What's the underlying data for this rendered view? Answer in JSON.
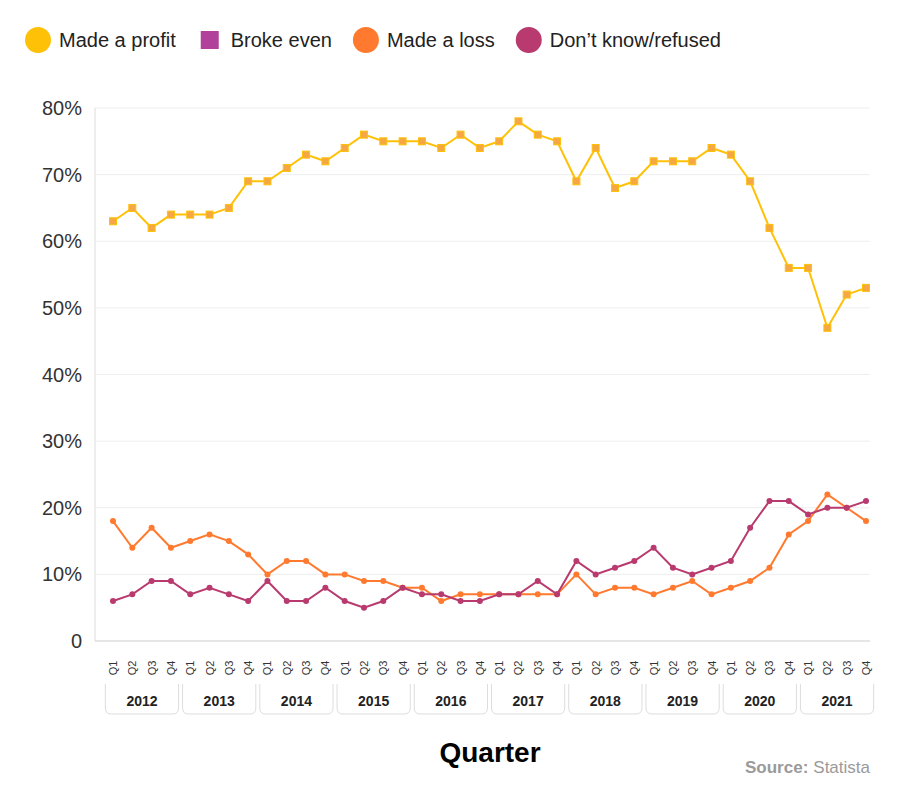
{
  "chart_data": {
    "type": "line",
    "x_label": "Quarter",
    "source_label": "Source:",
    "source": "Statista",
    "category_groups": [
      {
        "label": "2012",
        "quarters": [
          "Q1",
          "Q2",
          "Q3",
          "Q4"
        ]
      },
      {
        "label": "2013",
        "quarters": [
          "Q1",
          "Q2",
          "Q3",
          "Q4"
        ]
      },
      {
        "label": "2014",
        "quarters": [
          "Q1",
          "Q2",
          "Q3",
          "Q4"
        ]
      },
      {
        "label": "2015",
        "quarters": [
          "Q1",
          "Q2",
          "Q3",
          "Q4"
        ]
      },
      {
        "label": "2016",
        "quarters": [
          "Q1",
          "Q2",
          "Q3",
          "Q4"
        ]
      },
      {
        "label": "2017",
        "quarters": [
          "Q1",
          "Q2",
          "Q3",
          "Q4"
        ]
      },
      {
        "label": "2018",
        "quarters": [
          "Q1",
          "Q2",
          "Q3",
          "Q4"
        ]
      },
      {
        "label": "2019",
        "quarters": [
          "Q1",
          "Q2",
          "Q3",
          "Q4"
        ]
      },
      {
        "label": "2020",
        "quarters": [
          "Q1",
          "Q2",
          "Q3",
          "Q4"
        ]
      },
      {
        "label": "2021",
        "quarters": [
          "Q1",
          "Q2",
          "Q3",
          "Q4"
        ]
      }
    ],
    "series": [
      {
        "name": "Made a profit",
        "type": "line",
        "color": "#FFC107",
        "marker": "square",
        "values": [
          63,
          65,
          62,
          64,
          64,
          64,
          65,
          69,
          69,
          71,
          73,
          72,
          74,
          76,
          75,
          75,
          75,
          74,
          76,
          74,
          75,
          78,
          76,
          75,
          69,
          74,
          68,
          69,
          72,
          72,
          72,
          74,
          73,
          69,
          62,
          56,
          56,
          47,
          52,
          53
        ]
      },
      {
        "name": "Broke even",
        "type": "scatter",
        "color": "#B0409A",
        "marker": "square",
        "values": [
          null,
          null,
          null,
          null,
          null,
          null,
          null,
          null,
          null,
          null,
          null,
          null,
          null,
          null,
          null,
          null,
          null,
          null,
          null,
          null,
          null,
          null,
          null,
          null,
          null,
          null,
          null,
          null,
          null,
          null,
          null,
          null,
          null,
          null,
          null,
          null,
          null,
          null,
          null,
          null
        ]
      },
      {
        "name": "Made a loss",
        "type": "line",
        "color": "#FF7A2F",
        "marker": "circle",
        "values": [
          18,
          14,
          17,
          14,
          15,
          16,
          15,
          13,
          10,
          12,
          12,
          10,
          10,
          9,
          9,
          8,
          8,
          6,
          7,
          7,
          7,
          7,
          7,
          7,
          10,
          7,
          8,
          8,
          7,
          8,
          9,
          7,
          8,
          9,
          11,
          16,
          18,
          22,
          20,
          18
        ]
      },
      {
        "name": "Don’t know/refused",
        "type": "line",
        "color": "#B83A6E",
        "marker": "circle",
        "values": [
          6,
          7,
          9,
          9,
          7,
          8,
          7,
          6,
          9,
          6,
          6,
          8,
          6,
          5,
          6,
          8,
          7,
          7,
          6,
          6,
          7,
          7,
          9,
          7,
          12,
          10,
          11,
          12,
          14,
          11,
          10,
          11,
          12,
          17,
          21,
          21,
          19,
          20,
          20,
          21
        ]
      }
    ],
    "ylim": [
      0,
      80
    ],
    "yticks": [
      0,
      {
        "value": 10,
        "label": "10%"
      },
      {
        "value": 20,
        "label": "20%"
      },
      {
        "value": 30,
        "label": "30%"
      },
      {
        "value": 40,
        "label": "40%"
      },
      {
        "value": 50,
        "label": "50%"
      },
      {
        "value": 60,
        "label": "60%"
      },
      {
        "value": 70,
        "label": "70%"
      },
      {
        "value": 80,
        "label": "80%"
      }
    ],
    "grid": true,
    "legend": "top"
  }
}
